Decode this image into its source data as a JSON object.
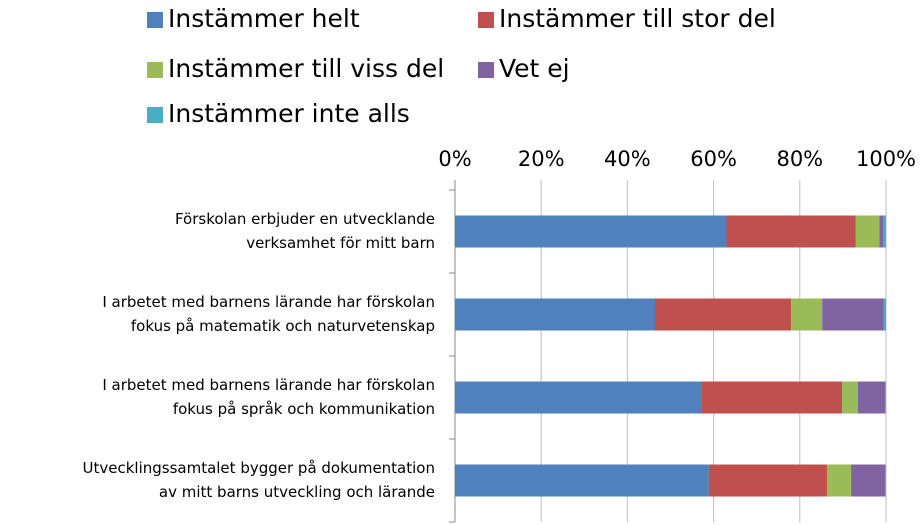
{
  "chart_data": {
    "type": "stacked-bar-horizontal",
    "categories": [
      [
        "Förskolan erbjuder en utvecklande",
        "verksamhet för mitt barn"
      ],
      [
        "I arbetet med barnens lärande har förskolan",
        "fokus på matematik och naturvetenskap"
      ],
      [
        "I arbetet med barnens lärande har förskolan",
        "fokus på språk och kommunikation"
      ],
      [
        "Utvecklingssamtalet bygger på dokumentation",
        "av mitt barns utveckling och lärande"
      ]
    ],
    "series": [
      {
        "name": "Instämmer helt",
        "color": "#4f81bd",
        "values": [
          63,
          46.4,
          57.3,
          58.9
        ]
      },
      {
        "name": "Instämmer till stor del",
        "color": "#c0504d",
        "values": [
          30,
          31.6,
          32.5,
          27.4
        ]
      },
      {
        "name": "Instämmer till viss del",
        "color": "#9bbb59",
        "values": [
          5.5,
          7.2,
          3.7,
          5.6
        ]
      },
      {
        "name": "Vet ej",
        "color": "#8064a2",
        "values": [
          0.8,
          14.3,
          6.3,
          7.9
        ]
      },
      {
        "name": "Instämmer inte alls",
        "color": "#4bacc6",
        "values": [
          0.7,
          0.5,
          0.2,
          0.2
        ]
      }
    ],
    "xlim": [
      0,
      100
    ],
    "xticks": [
      {
        "value": 0,
        "label": "0%"
      },
      {
        "value": 20,
        "label": "20%"
      },
      {
        "value": 40,
        "label": "40%"
      },
      {
        "value": 60,
        "label": "60%"
      },
      {
        "value": 80,
        "label": "80%"
      },
      {
        "value": 100,
        "label": "100%"
      }
    ],
    "grid": true,
    "legend": "top"
  }
}
